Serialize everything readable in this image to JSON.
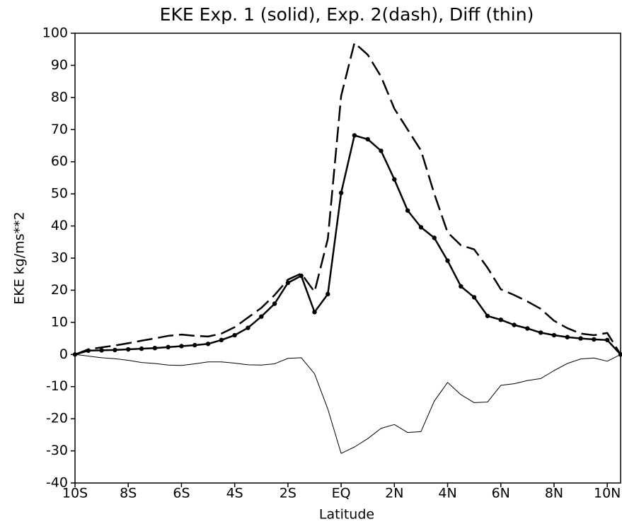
{
  "chart_data": {
    "type": "line",
    "title": "EKE Exp. 1 (solid), Exp. 2(dash), Diff (thin)",
    "x_label": "Latitude",
    "y_label": "EKE kg/ms**2",
    "x": [
      -10,
      -9.5,
      -9,
      -8.5,
      -8,
      -7.5,
      -7,
      -6.5,
      -6,
      -5.5,
      -5,
      -4.5,
      -4,
      -3.5,
      -3,
      -2.5,
      -2,
      -1.5,
      -1,
      -0.5,
      0,
      0.5,
      1,
      1.5,
      2,
      2.5,
      3,
      3.5,
      4,
      4.5,
      5,
      5.5,
      6,
      6.5,
      7,
      7.5,
      8,
      8.5,
      9,
      9.5,
      10,
      10.5
    ],
    "series": [
      {
        "color": "#000000",
        "line_style": "solid",
        "line_width": 2.5,
        "marker": "dot",
        "values": [
          0,
          1.2,
          1.3,
          1.4,
          1.6,
          1.8,
          2.0,
          2.3,
          2.6,
          2.9,
          3.3,
          4.5,
          6.0,
          8.3,
          11.8,
          15.8,
          22.3,
          24.5,
          13.2,
          18.8,
          50.3,
          68.2,
          67,
          63.4,
          54.5,
          44.8,
          39.6,
          36.3,
          29.2,
          21.2,
          17.8,
          12,
          10.8,
          9.2,
          8.1,
          6.8,
          6,
          5.4,
          5,
          4.7,
          4.5,
          0
        ]
      },
      {
        "color": "#000000",
        "line_style": "dash",
        "line_width": 2.5,
        "marker": "none",
        "values": [
          0,
          1.6,
          2.2,
          2.8,
          3.5,
          4.3,
          5.0,
          5.8,
          6.2,
          5.8,
          5.6,
          6.5,
          8.5,
          11.5,
          14.5,
          18.5,
          23.3,
          25.2,
          19.5,
          36,
          80.5,
          97,
          93.3,
          86.5,
          76.5,
          70,
          63.5,
          50,
          38,
          34,
          32.7,
          27,
          20.3,
          18.5,
          16.5,
          14.2,
          10.5,
          8.2,
          6.5,
          6,
          6.7,
          0
        ]
      },
      {
        "color": "#000000",
        "line_style": "solid",
        "line_width": 1,
        "marker": "none",
        "values": [
          0,
          -0.5,
          -1,
          -1.3,
          -1.8,
          -2.5,
          -2.8,
          -3.3,
          -3.4,
          -2.9,
          -2.3,
          -2.3,
          -2.7,
          -3.2,
          -3.3,
          -2.9,
          -1.2,
          -1,
          -6,
          -17,
          -30.8,
          -28.8,
          -26.2,
          -23,
          -21.8,
          -24.3,
          -24,
          -14.5,
          -8.7,
          -12.5,
          -15,
          -14.8,
          -9.6,
          -9.1,
          -8.1,
          -7.5,
          -5,
          -2.8,
          -1.4,
          -1.1,
          -2.1,
          0
        ]
      }
    ],
    "xlim": [
      -10,
      10.5
    ],
    "xticks": [
      {
        "value": -10,
        "label": "10S"
      },
      {
        "value": -8,
        "label": "8S"
      },
      {
        "value": -6,
        "label": "6S"
      },
      {
        "value": -4,
        "label": "4S"
      },
      {
        "value": -2,
        "label": "2S"
      },
      {
        "value": 0,
        "label": "EQ"
      },
      {
        "value": 2,
        "label": "2N"
      },
      {
        "value": 4,
        "label": "4N"
      },
      {
        "value": 6,
        "label": "6N"
      },
      {
        "value": 8,
        "label": "8N"
      },
      {
        "value": 10,
        "label": "10N"
      }
    ],
    "ylim": [
      -40,
      100
    ],
    "yticks": [
      -40,
      -30,
      -20,
      -10,
      0,
      10,
      20,
      30,
      40,
      50,
      60,
      70,
      80,
      90,
      100
    ],
    "grid": false
  }
}
